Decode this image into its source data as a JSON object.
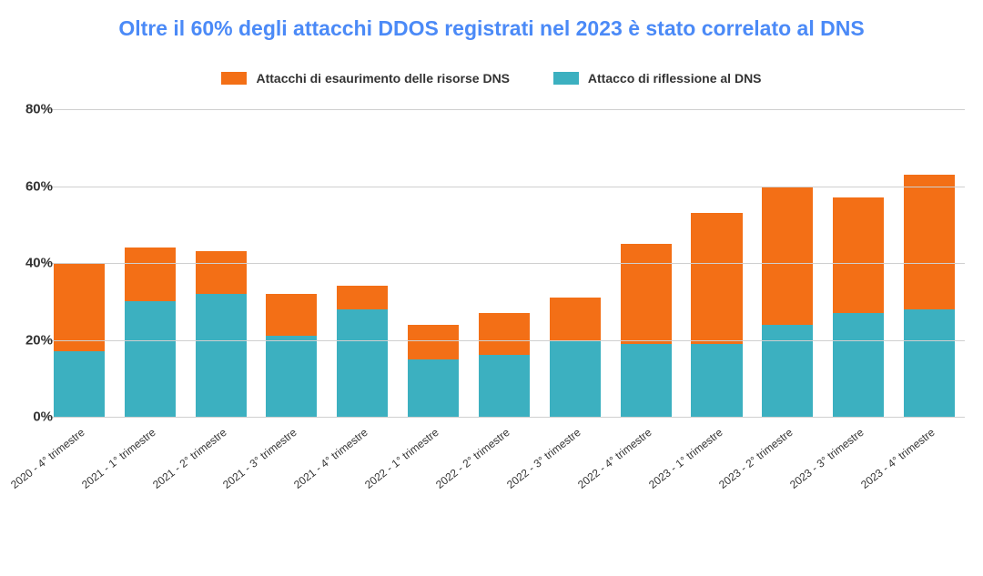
{
  "chart": {
    "type": "stacked-bar",
    "title": "Oltre il 60% degli attacchi DDOS registrati nel 2023 è stato correlato al DNS",
    "title_color": "#4b8af7",
    "title_fontsize": 23,
    "background_color": "#ffffff",
    "grid_color": "#cfcfcf",
    "axis_text_color": "#333333",
    "tick_fontsize": 15,
    "xlabel_fontsize": 12,
    "ylim": [
      0,
      80
    ],
    "ytick_step": 20,
    "yticks": [
      "0%",
      "20%",
      "40%",
      "60%",
      "80%"
    ],
    "yunit": "%",
    "legend": {
      "fontsize": 14,
      "text_color": "#333333",
      "items": [
        {
          "label": "Attacchi di esaurimento delle risorse DNS",
          "color": "#f36f16"
        },
        {
          "label": "Attacco di riflessione al DNS",
          "color": "#3cb0c0"
        }
      ]
    },
    "series_colors": {
      "reflection": "#3cb0c0",
      "exhaustion": "#f36f16"
    },
    "categories": [
      "2020 - 4° trimestre",
      "2021 - 1° trimestre",
      "2021 - 2° trimestre",
      "2021 - 3° trimestre",
      "2021 - 4° trimestre",
      "2022 - 1° trimestre",
      "2022 - 2° trimestre",
      "2022 - 3° trimestre",
      "2022 - 4° trimestre",
      "2023 - 1° trimestre",
      "2023 - 2° trimestre",
      "2023 - 3° trimestre",
      "2023 - 4° trimestre"
    ],
    "data": [
      {
        "reflection": 17,
        "exhaustion": 23
      },
      {
        "reflection": 30,
        "exhaustion": 14
      },
      {
        "reflection": 32,
        "exhaustion": 11
      },
      {
        "reflection": 21,
        "exhaustion": 11
      },
      {
        "reflection": 28,
        "exhaustion": 6
      },
      {
        "reflection": 15,
        "exhaustion": 9
      },
      {
        "reflection": 16,
        "exhaustion": 11
      },
      {
        "reflection": 20,
        "exhaustion": 11
      },
      {
        "reflection": 19,
        "exhaustion": 26
      },
      {
        "reflection": 19,
        "exhaustion": 34
      },
      {
        "reflection": 24,
        "exhaustion": 36
      },
      {
        "reflection": 27,
        "exhaustion": 30
      },
      {
        "reflection": 28,
        "exhaustion": 35
      }
    ],
    "bar_width": 0.72
  }
}
